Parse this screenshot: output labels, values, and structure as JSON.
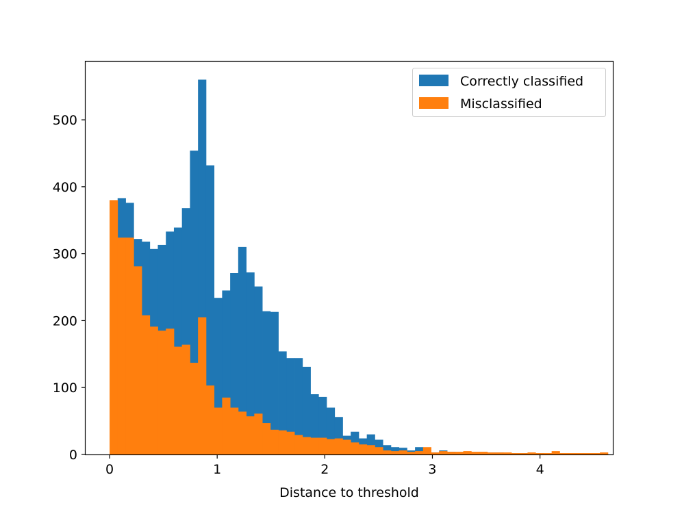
{
  "chart_data": {
    "type": "bar",
    "title": "",
    "xlabel": "Distance to threshold",
    "ylabel": "",
    "xlim": [
      -0.223,
      4.677
    ],
    "ylim": [
      0,
      587
    ],
    "grid": false,
    "legend_position": "top-right",
    "bin_width": 0.0747,
    "xticks": [
      0,
      1,
      2,
      3,
      4
    ],
    "xtick_labels": [
      "0",
      "1",
      "2",
      "3",
      "4"
    ],
    "yticks": [
      0,
      100,
      200,
      300,
      400,
      500
    ],
    "ytick_labels": [
      "0",
      "100",
      "200",
      "300",
      "400",
      "500"
    ],
    "series": [
      {
        "name": "Correctly classified",
        "color": "#1f77b4",
        "bin_start": 0.0,
        "values": [
          2,
          383,
          376,
          322,
          318,
          307,
          313,
          333,
          339,
          368,
          454,
          560,
          432,
          234,
          245,
          271,
          310,
          272,
          251,
          214,
          213,
          154,
          144,
          144,
          131,
          90,
          86,
          70,
          56,
          28,
          34,
          24,
          30,
          22,
          14,
          11,
          10,
          6,
          11,
          2,
          3,
          6,
          4,
          3,
          3,
          2,
          2,
          3,
          3,
          2,
          2,
          2,
          1,
          2,
          1,
          1,
          1,
          1,
          1,
          1,
          1,
          1
        ]
      },
      {
        "name": "Misclassified",
        "color": "#ff7f0e",
        "bin_start": 0.0,
        "values": [
          380,
          324,
          324,
          281,
          208,
          191,
          185,
          188,
          161,
          164,
          137,
          205,
          103,
          70,
          85,
          70,
          64,
          57,
          61,
          47,
          37,
          36,
          34,
          29,
          26,
          25,
          25,
          23,
          24,
          22,
          18,
          15,
          14,
          11,
          6,
          5,
          6,
          4,
          5,
          11,
          3,
          5,
          4,
          4,
          5,
          4,
          4,
          3,
          3,
          3,
          2,
          2,
          3,
          2,
          2,
          5,
          2,
          2,
          2,
          2,
          2,
          3
        ]
      }
    ]
  }
}
